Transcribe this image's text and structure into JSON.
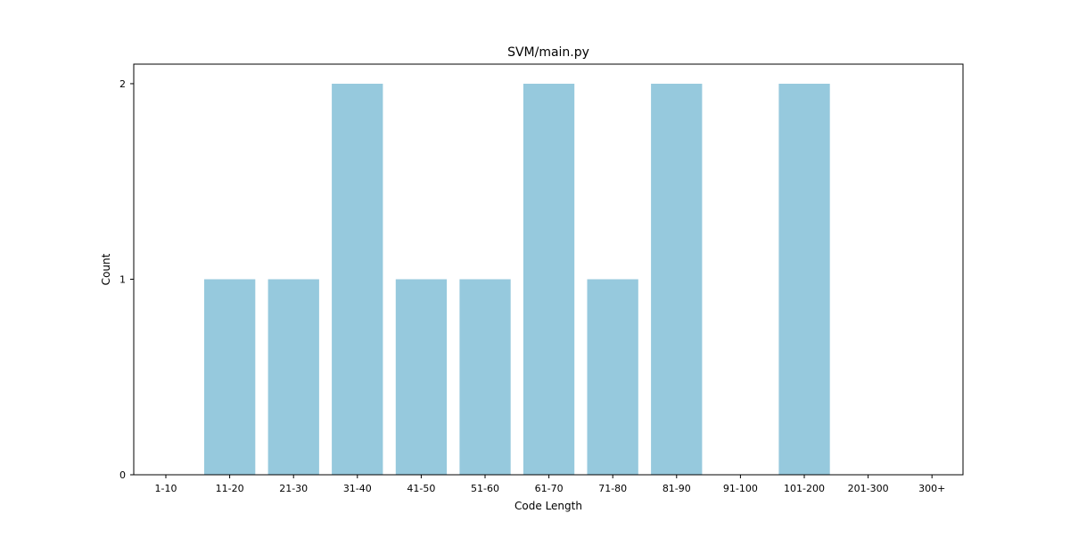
{
  "chart_data": {
    "type": "bar",
    "title": "SVM/main.py",
    "xlabel": "Code Length",
    "ylabel": "Count",
    "categories": [
      "1-10",
      "11-20",
      "21-30",
      "31-40",
      "41-50",
      "51-60",
      "61-70",
      "71-80",
      "81-90",
      "91-100",
      "101-200",
      "201-300",
      "300+"
    ],
    "values": [
      0,
      1,
      1,
      2,
      1,
      1,
      2,
      1,
      2,
      0,
      2,
      0,
      0
    ],
    "ylim": [
      0,
      2.1
    ],
    "yticks": [
      0,
      1,
      2
    ],
    "bar_color": "#96c9dd",
    "grid": false,
    "legend": "none"
  }
}
